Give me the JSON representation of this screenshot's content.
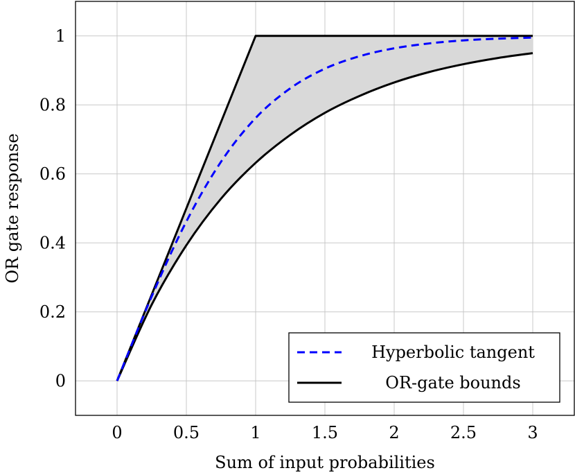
{
  "chart_data": {
    "type": "line",
    "title": "",
    "xlabel": "Sum of input probabilities",
    "ylabel": "OR gate response",
    "xlim": [
      -0.3,
      3.3
    ],
    "ylim": [
      -0.1,
      1.1
    ],
    "xticks": [
      0,
      0.5,
      1,
      1.5,
      2,
      2.5,
      3
    ],
    "xtick_labels": [
      "0",
      "0.5",
      "1",
      "1.5",
      "2",
      "2.5",
      "3"
    ],
    "yticks": [
      0,
      0.2,
      0.4,
      0.6,
      0.8,
      1
    ],
    "ytick_labels": [
      "0",
      "0.2",
      "0.4",
      "0.6",
      "0.8",
      "1"
    ],
    "grid": true,
    "legend_position": "bottom-right",
    "x": [
      0,
      0.25,
      0.5,
      0.75,
      1,
      1.25,
      1.5,
      1.75,
      2,
      2.25,
      2.5,
      2.75,
      3
    ],
    "series": [
      {
        "name": "Hyperbolic tangent",
        "style": "dashed",
        "color": "#0000ff",
        "values": [
          0,
          0.245,
          0.462,
          0.635,
          0.762,
          0.848,
          0.905,
          0.941,
          0.964,
          0.978,
          0.987,
          0.992,
          0.995
        ]
      },
      {
        "name": "OR-gate bounds",
        "style": "solid",
        "color": "#000000",
        "values": [
          0,
          0.25,
          0.5,
          0.75,
          1,
          1,
          1,
          1,
          1,
          1,
          1,
          1,
          1
        ]
      },
      {
        "name": "",
        "style": "solid",
        "color": "#000000",
        "values": [
          0,
          0.221,
          0.393,
          0.528,
          0.632,
          0.713,
          0.777,
          0.826,
          0.865,
          0.895,
          0.918,
          0.936,
          0.95
        ]
      }
    ],
    "fill_between": {
      "upper_series": 1,
      "lower_series": 2,
      "color": "#d9d9d9"
    }
  }
}
